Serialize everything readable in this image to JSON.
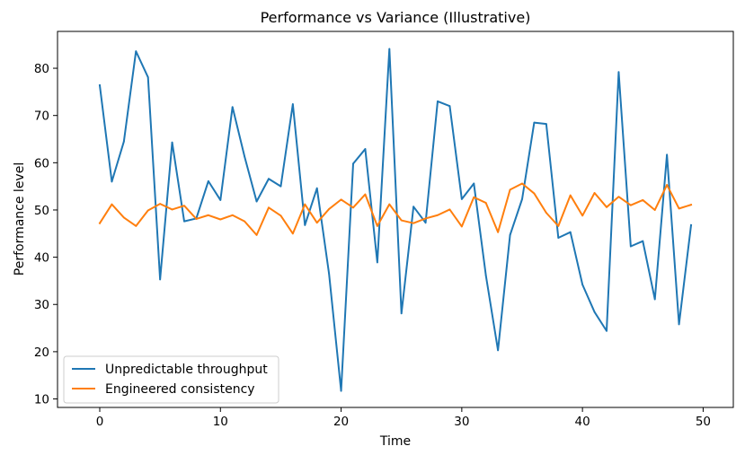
{
  "chart_data": {
    "type": "line",
    "title": "Performance vs Variance (Illustrative)",
    "xlabel": "Time",
    "ylabel": "Performance level",
    "xlim": [
      -3.5,
      52.5
    ],
    "ylim": [
      8.2,
      87.8
    ],
    "xticks": [
      0,
      10,
      20,
      30,
      40,
      50
    ],
    "yticks": [
      10,
      20,
      30,
      40,
      50,
      60,
      70,
      80
    ],
    "grid": false,
    "legend_position": "lower-left",
    "x": [
      0,
      1,
      2,
      3,
      4,
      5,
      6,
      7,
      8,
      9,
      10,
      11,
      12,
      13,
      14,
      15,
      16,
      17,
      18,
      19,
      20,
      21,
      22,
      23,
      24,
      25,
      26,
      27,
      28,
      29,
      30,
      31,
      32,
      33,
      34,
      35,
      36,
      37,
      38,
      39,
      40,
      41,
      42,
      43,
      44,
      45,
      46,
      47,
      48,
      49
    ],
    "series": [
      {
        "name": "Unpredictable throughput",
        "color": "#1f77b4",
        "values": [
          76.4,
          56.0,
          64.5,
          83.6,
          78.1,
          35.3,
          64.3,
          47.6,
          48.2,
          56.1,
          52.1,
          71.8,
          61.3,
          51.8,
          56.6,
          55.0,
          72.4,
          46.8,
          54.6,
          36.5,
          11.7,
          59.8,
          62.9,
          38.9,
          84.1,
          28.1,
          50.7,
          47.3,
          73.0,
          72.0,
          52.3,
          55.6,
          36.1,
          20.3,
          44.7,
          52.3,
          68.5,
          68.2,
          44.1,
          45.3,
          34.2,
          28.4,
          24.4,
          79.2,
          42.3,
          43.4,
          31.1,
          61.7,
          25.8,
          46.8
        ]
      },
      {
        "name": "Engineered consistency",
        "color": "#ff7f0e",
        "values": [
          47.2,
          51.2,
          48.4,
          46.6,
          49.9,
          51.3,
          50.1,
          50.9,
          48.1,
          48.9,
          48.0,
          48.9,
          47.6,
          44.7,
          50.5,
          48.8,
          45.0,
          51.2,
          47.3,
          50.2,
          52.2,
          50.5,
          53.3,
          46.6,
          51.2,
          47.8,
          47.2,
          48.2,
          48.9,
          50.1,
          46.5,
          52.7,
          51.5,
          45.3,
          54.3,
          55.6,
          53.5,
          49.4,
          46.6,
          53.1,
          48.8,
          53.6,
          50.6,
          52.8,
          51.0,
          52.1,
          50.0,
          55.3,
          50.3,
          51.1
        ]
      }
    ]
  }
}
